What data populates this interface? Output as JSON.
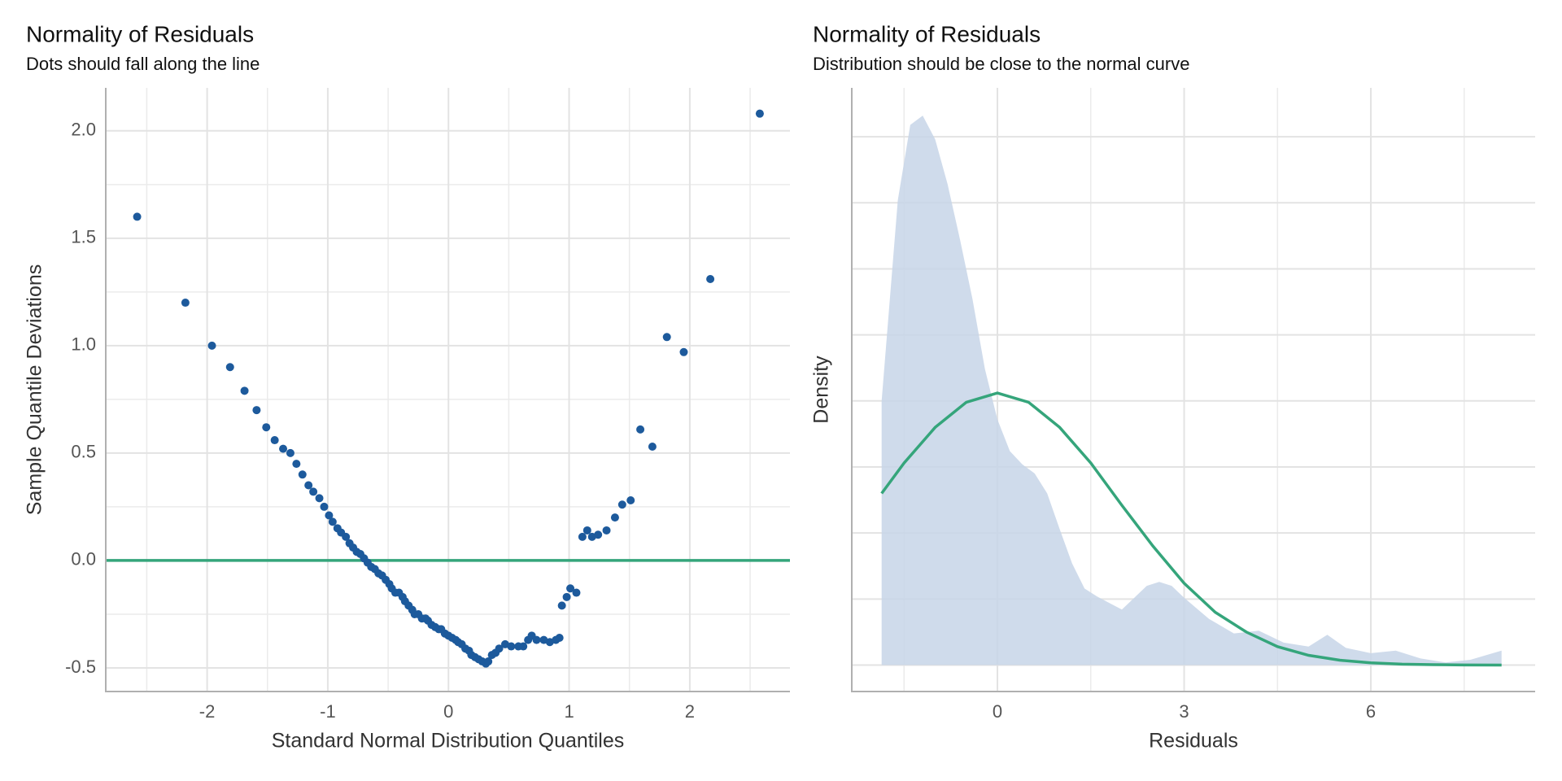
{
  "chart_data": [
    {
      "type": "scatter",
      "title": "Normality of Residuals",
      "subtitle": "Dots should fall along the line",
      "x_label": "Standard Normal Distribution Quantiles",
      "y_label": "Sample Quantile Deviations",
      "xlim": [
        -2.84,
        2.83
      ],
      "ylim": [
        -0.61,
        2.2
      ],
      "xticks": [
        -2,
        -1,
        0,
        1,
        2
      ],
      "yticks": [
        -0.5,
        {
          "value": 0,
          "label": "0.0"
        },
        0.5,
        {
          "value": 1,
          "label": "1.0"
        },
        1.5,
        {
          "value": 2,
          "label": "2.0"
        }
      ],
      "minor_xticks": [
        -2.5,
        -1.5,
        -0.5,
        0.5,
        1.5,
        2.5
      ],
      "minor_yticks": [
        -0.25,
        0.25,
        0.75,
        1.25,
        1.75
      ],
      "grid": true,
      "color": "#1d5a9c",
      "hline": 0,
      "hline_color": "#35a57b",
      "x": [
        -2.58,
        -2.18,
        -1.96,
        -1.81,
        -1.69,
        -1.59,
        -1.51,
        -1.44,
        -1.37,
        -1.31,
        -1.26,
        -1.21,
        -1.16,
        -1.12,
        -1.07,
        -1.03,
        -0.99,
        -0.96,
        -0.92,
        -0.89,
        -0.85,
        -0.82,
        -0.79,
        -0.76,
        -0.73,
        -0.7,
        -0.67,
        -0.64,
        -0.61,
        -0.58,
        -0.55,
        -0.52,
        -0.49,
        -0.47,
        -0.44,
        -0.41,
        -0.38,
        -0.36,
        -0.33,
        -0.3,
        -0.28,
        -0.25,
        -0.22,
        -0.19,
        -0.17,
        -0.14,
        -0.11,
        -0.08,
        -0.06,
        -0.03,
        0,
        0.03,
        0.06,
        0.08,
        0.11,
        0.14,
        0.17,
        0.19,
        0.22,
        0.25,
        0.28,
        0.31,
        0.33,
        0.36,
        0.39,
        0.42,
        0.47,
        0.52,
        0.58,
        0.62,
        0.66,
        0.69,
        0.73,
        0.79,
        0.84,
        0.89,
        0.92,
        0.94,
        0.98,
        1.01,
        1.06,
        1.11,
        1.15,
        1.19,
        1.24,
        1.31,
        1.38,
        1.44,
        1.51,
        1.59,
        1.69,
        1.81,
        1.95,
        2.17,
        2.58
      ],
      "values": [
        1.6,
        1.2,
        1.0,
        0.9,
        0.79,
        0.7,
        0.62,
        0.56,
        0.52,
        0.5,
        0.45,
        0.4,
        0.35,
        0.32,
        0.29,
        0.25,
        0.21,
        0.18,
        0.15,
        0.13,
        0.11,
        0.08,
        0.06,
        0.04,
        0.03,
        0.01,
        -0.01,
        -0.03,
        -0.04,
        -0.06,
        -0.07,
        -0.09,
        -0.11,
        -0.13,
        -0.15,
        -0.15,
        -0.17,
        -0.19,
        -0.21,
        -0.23,
        -0.25,
        -0.25,
        -0.27,
        -0.27,
        -0.28,
        -0.3,
        -0.31,
        -0.32,
        -0.32,
        -0.34,
        -0.35,
        -0.36,
        -0.37,
        -0.38,
        -0.39,
        -0.41,
        -0.42,
        -0.44,
        -0.45,
        -0.46,
        -0.47,
        -0.48,
        -0.47,
        -0.44,
        -0.43,
        -0.41,
        -0.39,
        -0.4,
        -0.4,
        -0.4,
        -0.37,
        -0.35,
        -0.37,
        -0.37,
        -0.38,
        -0.37,
        -0.36,
        -0.21,
        -0.17,
        -0.13,
        -0.15,
        0.11,
        0.14,
        0.11,
        0.12,
        0.14,
        0.2,
        0.26,
        0.28,
        0.61,
        0.53,
        1.04,
        0.97,
        1.31,
        2.08
      ]
    },
    {
      "type": "density",
      "title": "Normality of Residuals",
      "subtitle": "Distribution should be close to the normal curve",
      "x_label": "Residuals",
      "y_label": "Density",
      "xlim": [
        -2.34,
        8.64
      ],
      "ylim": [
        -0.02,
        0.437
      ],
      "xticks": [
        0,
        3,
        6
      ],
      "minor_xticks": [
        -1.5,
        1.5,
        4.5,
        7.5
      ],
      "ygrid": [
        0,
        0.05,
        0.1,
        0.15,
        0.2,
        0.25,
        0.3,
        0.35,
        0.4
      ],
      "grid": true,
      "series": [
        {
          "style": "area",
          "color": "#c7d5e8",
          "x": [
            -1.86,
            -1.6,
            -1.4,
            -1.2,
            -1.0,
            -0.8,
            -0.6,
            -0.4,
            -0.2,
            0,
            0.2,
            0.4,
            0.6,
            0.8,
            1.0,
            1.2,
            1.4,
            1.6,
            1.8,
            2.0,
            2.2,
            2.4,
            2.6,
            2.8,
            3.0,
            3.4,
            3.8,
            4.2,
            4.6,
            5.0,
            5.3,
            5.6,
            6.0,
            6.4,
            6.8,
            7.2,
            7.6,
            8.1
          ],
          "values": [
            0.2,
            0.352,
            0.409,
            0.416,
            0.398,
            0.364,
            0.322,
            0.277,
            0.224,
            0.186,
            0.162,
            0.152,
            0.145,
            0.13,
            0.103,
            0.077,
            0.058,
            0.052,
            0.047,
            0.042,
            0.051,
            0.06,
            0.063,
            0.06,
            0.051,
            0.035,
            0.024,
            0.026,
            0.017,
            0.014,
            0.023,
            0.013,
            0.009,
            0.011,
            0.005,
            0.002,
            0.004,
            0.011
          ]
        },
        {
          "style": "line",
          "color": "#35a57b",
          "x": [
            -1.86,
            -1.5,
            -1,
            -0.5,
            0,
            0.5,
            1,
            1.5,
            2,
            2.5,
            3,
            3.5,
            4,
            4.5,
            5,
            5.5,
            6,
            6.5,
            7,
            7.5,
            8.1
          ],
          "values": [
            0.13,
            0.153,
            0.18,
            0.199,
            0.206,
            0.199,
            0.18,
            0.153,
            0.121,
            0.09,
            0.062,
            0.04,
            0.025,
            0.014,
            0.0074,
            0.0037,
            0.0017,
            0.0007,
            0.0003,
            0.0001,
            0
          ]
        }
      ]
    }
  ]
}
